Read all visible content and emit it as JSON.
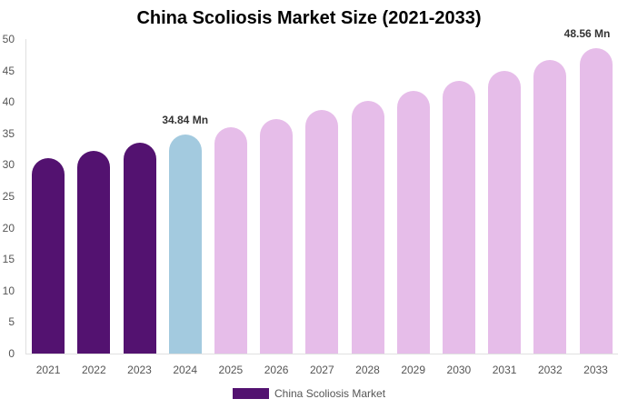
{
  "title": "China Scoliosis Market Size (2021-2033)",
  "legend": {
    "label": "China Scoliosis Market",
    "color": "#531270"
  },
  "colors": {
    "historical": "#531270",
    "base": "#a3cadf",
    "forecast": "#e6bde9"
  },
  "y_ticks": [
    "0",
    "5",
    "10",
    "15",
    "20",
    "25",
    "30",
    "35",
    "40",
    "45",
    "50"
  ],
  "annotations": [
    {
      "year": "2024",
      "text": "34.84 Mn"
    },
    {
      "year": "2033",
      "text": "48.56 Mn"
    }
  ],
  "chart_data": {
    "type": "bar",
    "title": "China Scoliosis Market Size (2021-2033)",
    "xlabel": "",
    "ylabel": "",
    "ylim": [
      0,
      50
    ],
    "categories": [
      "2021",
      "2022",
      "2023",
      "2024",
      "2025",
      "2026",
      "2027",
      "2028",
      "2029",
      "2030",
      "2031",
      "2032",
      "2033"
    ],
    "series": [
      {
        "name": "China Scoliosis Market",
        "values": [
          31.1,
          32.2,
          33.5,
          34.84,
          36.0,
          37.3,
          38.7,
          40.2,
          41.8,
          43.4,
          45.0,
          46.7,
          48.56
        ]
      }
    ],
    "bar_types": [
      "historical",
      "historical",
      "historical",
      "base",
      "forecast",
      "forecast",
      "forecast",
      "forecast",
      "forecast",
      "forecast",
      "forecast",
      "forecast",
      "forecast"
    ],
    "annotations": [
      {
        "x": "2024",
        "text": "34.84 Mn"
      },
      {
        "x": "2033",
        "text": "48.56 Mn"
      }
    ],
    "grid": false,
    "legend_position": "bottom"
  }
}
